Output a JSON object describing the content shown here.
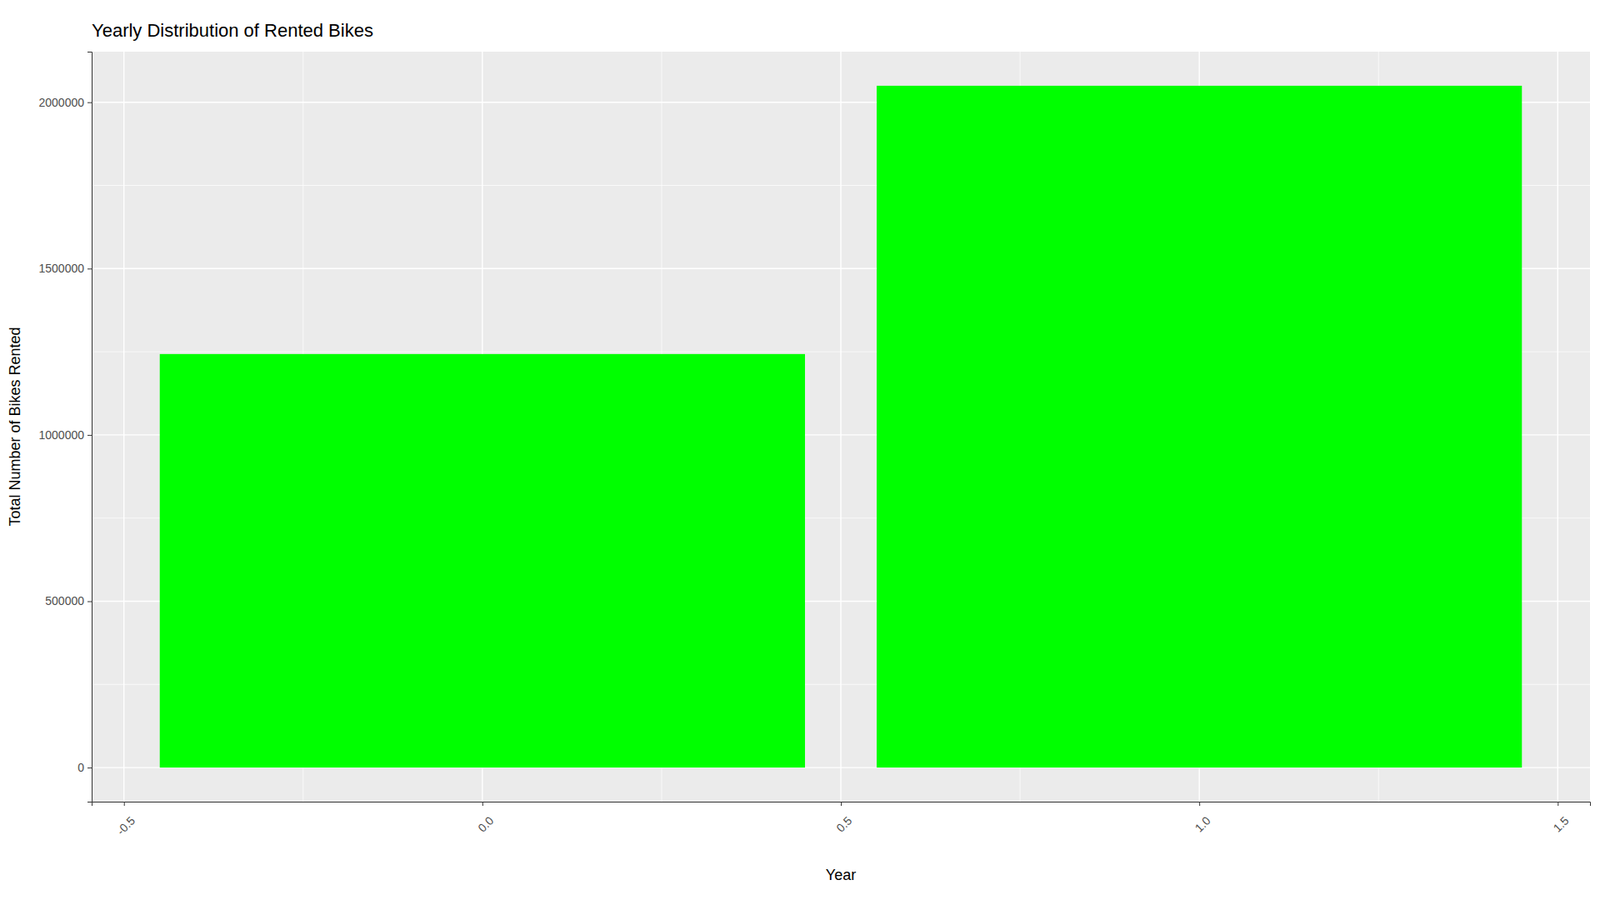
{
  "chart_data": {
    "type": "bar",
    "title": "Yearly Distribution of Rented Bikes",
    "x_label": "Year",
    "y_label": "Total Number of Bikes Rented",
    "x": [
      0,
      1
    ],
    "values": [
      1243103,
      2049576
    ],
    "color": "#00ff00",
    "xlim": [
      -0.545,
      1.545
    ],
    "xticks": [
      {
        "value": -0.5,
        "label": "-0.5"
      },
      {
        "value": 0,
        "label": "0.0"
      },
      {
        "value": 0.5,
        "label": "0.5"
      },
      {
        "value": 1,
        "label": "1.0"
      },
      {
        "value": 1.5,
        "label": "1.5"
      }
    ],
    "ylim": [
      -102479,
      2152055
    ],
    "yticks": [
      0,
      500000,
      1000000,
      1500000,
      2000000
    ],
    "grid": true
  }
}
